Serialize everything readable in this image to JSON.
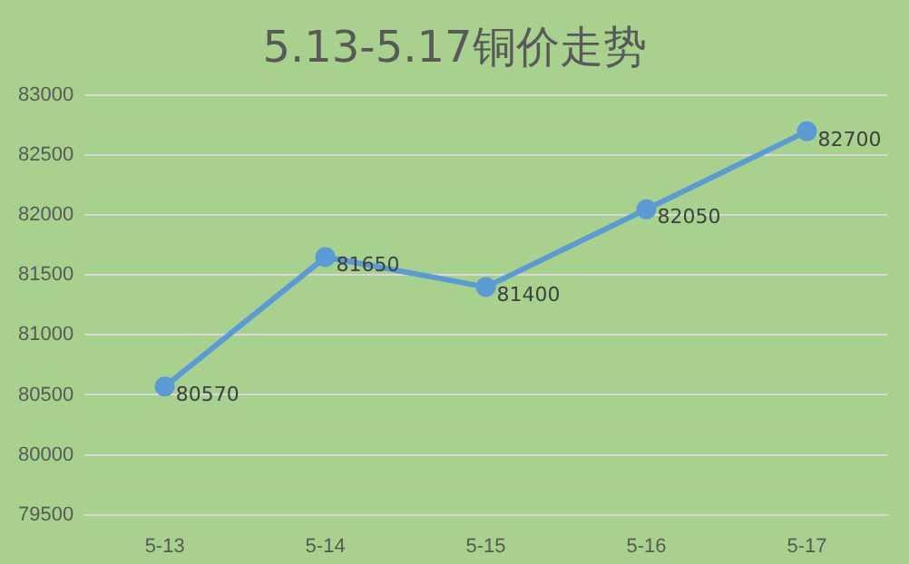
{
  "chart_data": {
    "type": "line",
    "title": "5.13-5.17铜价走势",
    "categories": [
      "5-13",
      "5-14",
      "5-15",
      "5-16",
      "5-17"
    ],
    "series": [
      {
        "color": "#5b9bd5",
        "values": [
          80570,
          81650,
          81400,
          82050,
          82700
        ]
      }
    ],
    "ylim": [
      79500,
      83000
    ],
    "yticks": [
      79500,
      80000,
      80500,
      81000,
      81500,
      82000,
      82500,
      83000
    ],
    "grid": "y",
    "legend": false,
    "marker": "circle",
    "data_labels": true
  }
}
